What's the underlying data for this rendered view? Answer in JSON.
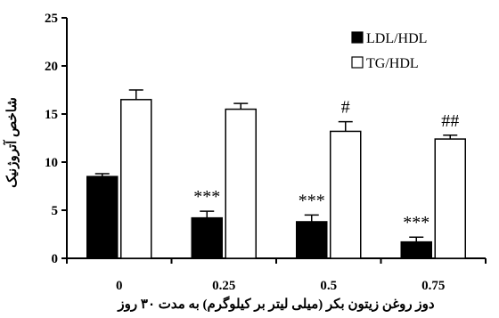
{
  "chart_data": {
    "type": "bar",
    "categories": [
      "0",
      "0.25",
      "0.5",
      "0.75"
    ],
    "series": [
      {
        "name": "LDL/HDL",
        "values": [
          8.5,
          4.2,
          3.8,
          1.7
        ],
        "errors": [
          0.3,
          0.7,
          0.7,
          0.5
        ],
        "fill": "#000000"
      },
      {
        "name": "TG/HDL",
        "values": [
          16.5,
          15.5,
          13.2,
          12.4
        ],
        "errors": [
          1.0,
          0.6,
          1.0,
          0.4
        ],
        "fill": "#ffffff"
      }
    ],
    "annotations": [
      {
        "category": 1,
        "series": 0,
        "text": "***"
      },
      {
        "category": 2,
        "series": 0,
        "text": "***"
      },
      {
        "category": 3,
        "series": 0,
        "text": "***"
      },
      {
        "category": 2,
        "series": 1,
        "text": "#"
      },
      {
        "category": 3,
        "series": 1,
        "text": "##"
      }
    ],
    "xlabel": "دوز روغن زیتون بکر (میلی لیتر بر کیلوگرم) به مدت ۳۰ روز",
    "ylabel": "شاخص آتروژنیک",
    "ylim": [
      0,
      25
    ],
    "yticks": [
      "0",
      "5",
      "10",
      "15",
      "20",
      "25"
    ],
    "grid": false,
    "legend_position": "top-right"
  }
}
